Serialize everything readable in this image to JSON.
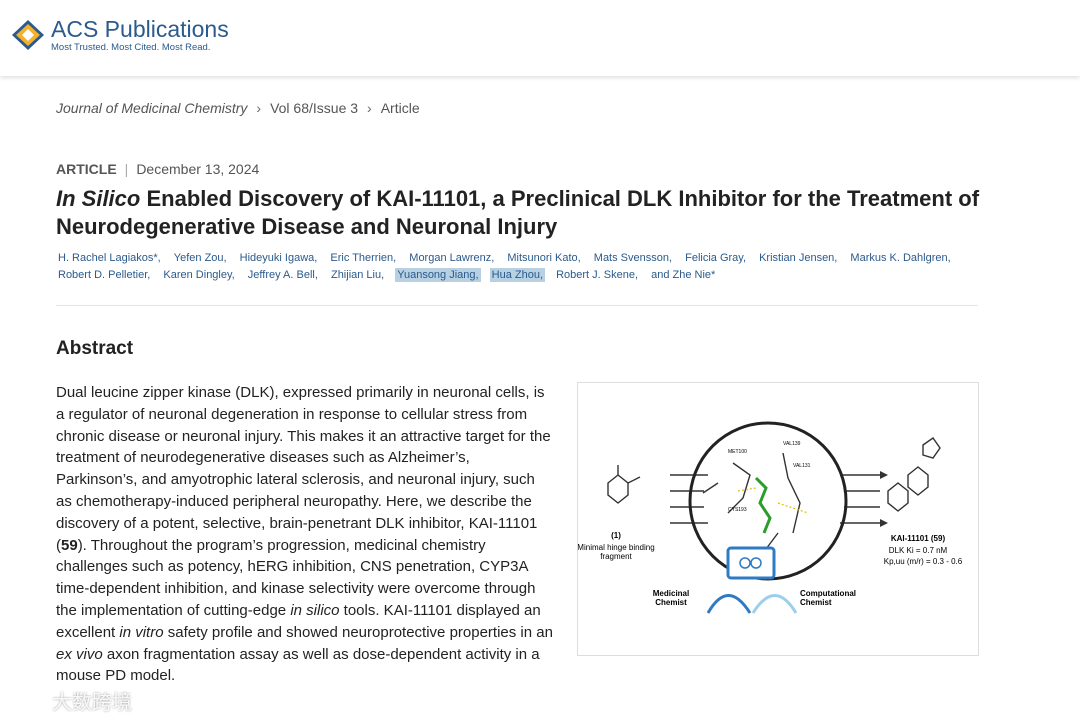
{
  "header": {
    "brand": "ACS Publications",
    "tagline": "Most Trusted. Most Cited. Most Read."
  },
  "breadcrumb": [
    "Journal of Medicinal Chemistry",
    "Vol 68/Issue 3",
    "Article"
  ],
  "article": {
    "kind": "ARTICLE",
    "date": "December 13, 2024",
    "title_italic": "In Silico",
    "title_rest": " Enabled Discovery of KAI-11101, a Preclinical DLK Inhibitor for the Treatment of Neurodegenerative Disease and Neuronal Injury",
    "authors": [
      {
        "name": "H. Rachel Lagiakos*,",
        "highlighted": false
      },
      {
        "name": "Yefen Zou,",
        "highlighted": false
      },
      {
        "name": "Hideyuki Igawa,",
        "highlighted": false
      },
      {
        "name": "Eric Therrien,",
        "highlighted": false
      },
      {
        "name": "Morgan Lawrenz,",
        "highlighted": false
      },
      {
        "name": "Mitsunori Kato,",
        "highlighted": false
      },
      {
        "name": "Mats Svensson,",
        "highlighted": false
      },
      {
        "name": "Felicia Gray,",
        "highlighted": false
      },
      {
        "name": "Kristian Jensen,",
        "highlighted": false
      },
      {
        "name": "Markus K. Dahlgren,",
        "highlighted": false
      },
      {
        "name": "Robert D. Pelletier,",
        "highlighted": false
      },
      {
        "name": "Karen Dingley,",
        "highlighted": false
      },
      {
        "name": "Jeffrey A. Bell,",
        "highlighted": false
      },
      {
        "name": "Zhijian Liu,",
        "highlighted": false
      },
      {
        "name": "Yuansong Jiang,",
        "highlighted": true
      },
      {
        "name": "Hua Zhou,",
        "highlighted": true
      },
      {
        "name": "Robert J. Skene,",
        "highlighted": false
      },
      {
        "name": "and Zhe Nie*",
        "highlighted": false
      }
    ]
  },
  "abstract": {
    "heading": "Abstract",
    "runs": [
      {
        "text": "Dual leucine zipper kinase (DLK), expressed primarily in neuronal cells, is a regulator of neuronal degeneration in response to cellular stress from chronic disease or neuronal injury. This makes it an attractive target for the treatment of neurodegenerative diseases such as Alzheimer’s, Parkinson’s, and amyotrophic lateral sclerosis, and neuronal injury, such as chemotherapy-induced peripheral neuropathy. Here, we describe the discovery of a potent, selective, brain-penetrant DLK inhibitor, KAI-11101 (",
        "style": "plain"
      },
      {
        "text": "59",
        "style": "bold"
      },
      {
        "text": "). Throughout the program’s progression, medicinal chemistry challenges such as potency, hERG inhibition, CNS penetration, CYP3A time-dependent inhibition, and kinase selectivity were overcome through the implementation of cutting-edge ",
        "style": "plain"
      },
      {
        "text": "in silico",
        "style": "italic"
      },
      {
        "text": " tools. KAI-11101 displayed an excellent ",
        "style": "plain"
      },
      {
        "text": "in vitro",
        "style": "italic"
      },
      {
        "text": " safety profile and showed neuroprotective properties in an ",
        "style": "plain"
      },
      {
        "text": "ex vivo",
        "style": "italic"
      },
      {
        "text": " axon fragmentation assay as well as dose-dependent activity in a mouse PD model.",
        "style": "plain"
      }
    ]
  },
  "graphic": {
    "fragment_number": "(1)",
    "fragment_caption": "Minimal hinge binding fragment",
    "residues": [
      "MET100",
      "VAL139",
      "VAL131",
      "CYS193"
    ],
    "compound": "KAI-11101 (59)",
    "ki": "DLK Ki = 0.7 nM",
    "kpuu": "Kp,uu (m/r) = 0.3 - 0.6",
    "medicinal": "Medicinal Chemist",
    "computational": "Computational Chemist"
  },
  "watermark": "大数跨境"
}
